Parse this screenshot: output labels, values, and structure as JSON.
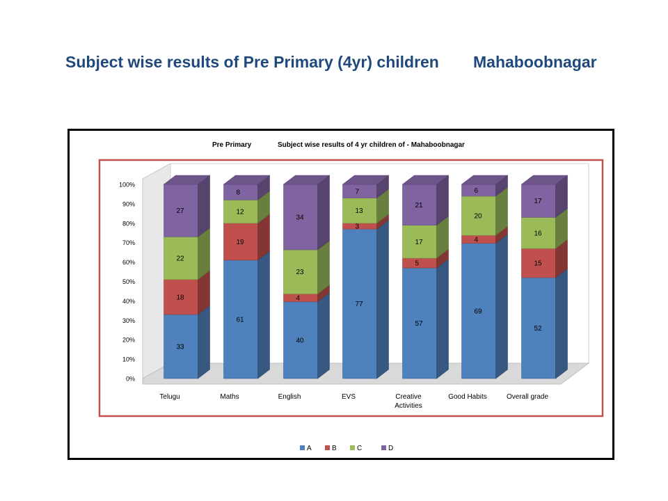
{
  "slide": {
    "title_left": "Subject wise results of Pre Primary (4yr) children",
    "title_right": "Mahaboobnagar"
  },
  "chart_data": {
    "type": "bar",
    "stacked": "percent",
    "three_d": true,
    "title_left": "Pre Primary",
    "title_right": "Subject wise results of 4 yr children of - Mahaboobnagar",
    "categories": [
      "Telugu",
      "Maths",
      "English",
      "EVS",
      "Creative Activities",
      "Good Habits",
      "Overall grade"
    ],
    "series": [
      {
        "name": "A",
        "color": "#4f81bd",
        "values": [
          33,
          61,
          40,
          77,
          57,
          69,
          52
        ]
      },
      {
        "name": "B",
        "color": "#c0504d",
        "values": [
          18,
          19,
          4,
          3,
          5,
          4,
          15
        ]
      },
      {
        "name": "C",
        "color": "#9bbb59",
        "values": [
          22,
          12,
          23,
          13,
          17,
          20,
          16
        ]
      },
      {
        "name": "D",
        "color": "#8064a2",
        "values": [
          27,
          8,
          34,
          7,
          21,
          6,
          17
        ]
      }
    ],
    "y_ticks": [
      "0%",
      "10%",
      "20%",
      "30%",
      "40%",
      "50%",
      "60%",
      "70%",
      "80%",
      "90%",
      "100%"
    ],
    "ylim": [
      0,
      100
    ],
    "grid": false,
    "legend": "bottom"
  }
}
